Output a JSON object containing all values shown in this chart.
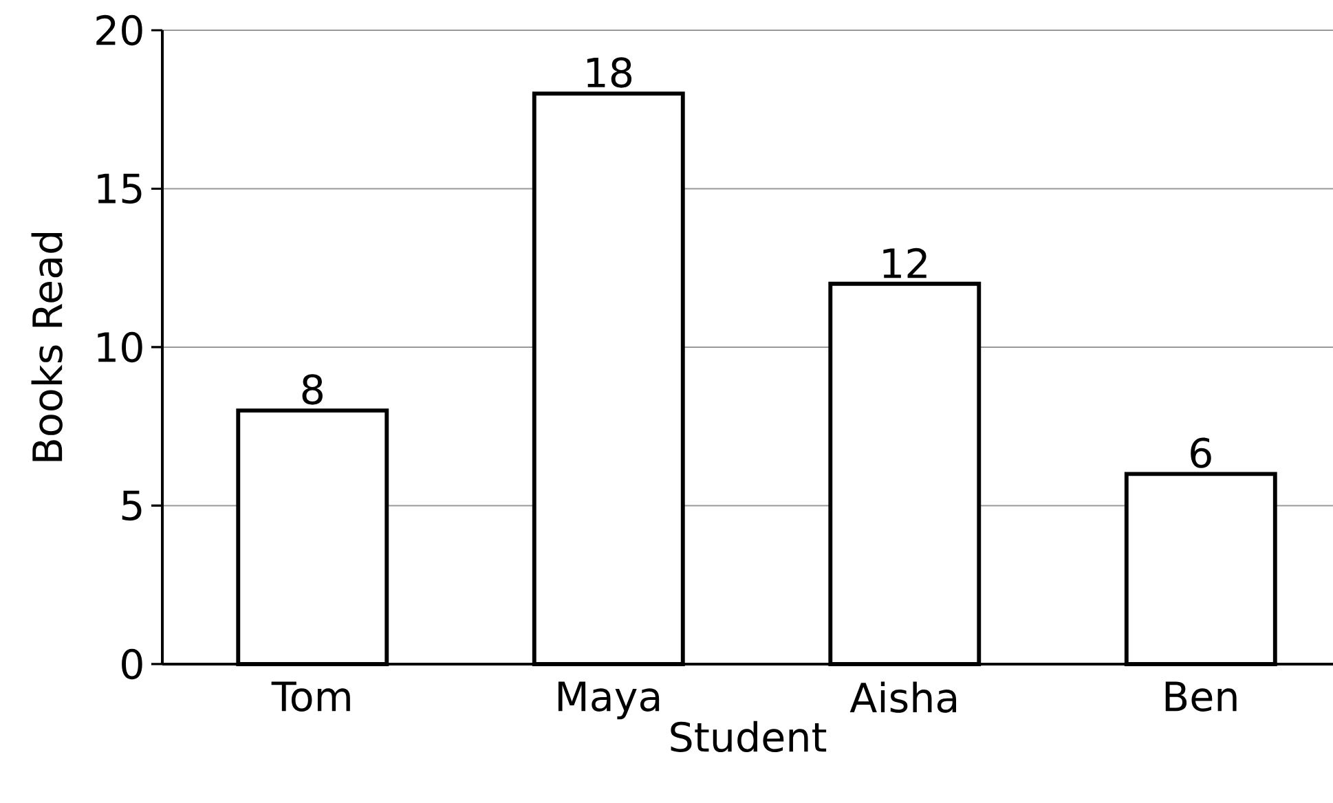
{
  "chart_data": {
    "type": "bar",
    "xlabel": "Student",
    "ylabel": "Books Read",
    "categories": [
      "Tom",
      "Maya",
      "Aisha",
      "Ben"
    ],
    "values": [
      8,
      18,
      12,
      6
    ],
    "color": "#ffffff",
    "ylim": [
      0,
      20
    ],
    "yticks": [
      0,
      5,
      10,
      15,
      20
    ],
    "grid": "y",
    "data_labels": true
  }
}
